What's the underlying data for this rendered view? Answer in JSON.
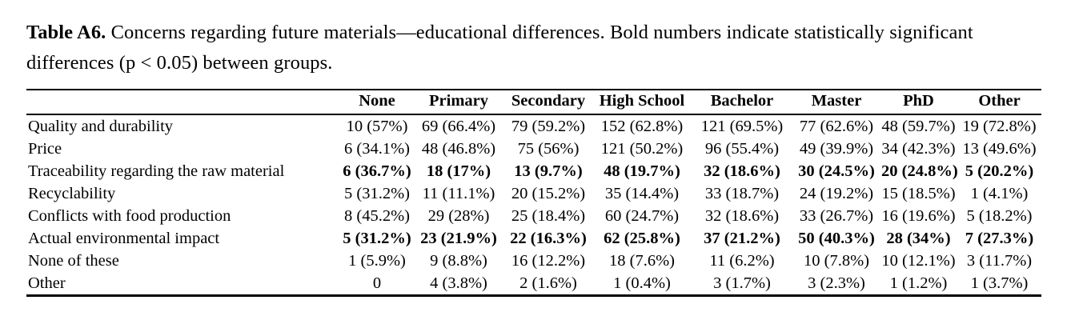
{
  "caption": {
    "label": "Table A6.",
    "text": " Concerns regarding future materials—educational differences. Bold numbers indicate statistically significant differences (p < 0.05) between groups."
  },
  "table": {
    "columns": [
      "None",
      "Primary",
      "Secondary",
      "High School",
      "Bachelor",
      "Master",
      "PhD",
      "Other"
    ],
    "rows": [
      {
        "label": "Quality and durability",
        "bold": false,
        "values": [
          "10 (57%)",
          "69 (66.4%)",
          "79 (59.2%)",
          "152 (62.8%)",
          "121 (69.5%)",
          "77 (62.6%)",
          "48 (59.7%)",
          "19 (72.8%)"
        ]
      },
      {
        "label": "Price",
        "bold": false,
        "values": [
          "6 (34.1%)",
          "48 (46.8%)",
          "75 (56%)",
          "121 (50.2%)",
          "96 (55.4%)",
          "49 (39.9%)",
          "34 (42.3%)",
          "13 (49.6%)"
        ]
      },
      {
        "label": "Traceability regarding the raw material",
        "bold": true,
        "values": [
          "6 (36.7%)",
          "18 (17%)",
          "13 (9.7%)",
          "48 (19.7%)",
          "32 (18.6%)",
          "30 (24.5%)",
          "20 (24.8%)",
          "5 (20.2%)"
        ]
      },
      {
        "label": "Recyclability",
        "bold": false,
        "values": [
          "5 (31.2%)",
          "11 (11.1%)",
          "20 (15.2%)",
          "35 (14.4%)",
          "33 (18.7%)",
          "24 (19.2%)",
          "15 (18.5%)",
          "1 (4.1%)"
        ]
      },
      {
        "label": "Conflicts with food production",
        "bold": false,
        "values": [
          "8 (45.2%)",
          "29 (28%)",
          "25 (18.4%)",
          "60 (24.7%)",
          "32 (18.6%)",
          "33 (26.7%)",
          "16 (19.6%)",
          "5 (18.2%)"
        ]
      },
      {
        "label": "Actual environmental impact",
        "bold": true,
        "values": [
          "5 (31.2%)",
          "23 (21.9%)",
          "22 (16.3%)",
          "62 (25.8%)",
          "37 (21.2%)",
          "50 (40.3%)",
          "28 (34%)",
          "7 (27.3%)"
        ]
      },
      {
        "label": "None of these",
        "bold": false,
        "values": [
          "1 (5.9%)",
          "9 (8.8%)",
          "16 (12.2%)",
          "18 (7.6%)",
          "11 (6.2%)",
          "10 (7.8%)",
          "10 (12.1%)",
          "3 (11.7%)"
        ]
      },
      {
        "label": "Other",
        "bold": false,
        "values": [
          "0",
          "4 (3.8%)",
          "2 (1.6%)",
          "1 (0.4%)",
          "3 (1.7%)",
          "3 (2.3%)",
          "1 (1.2%)",
          "1 (3.7%)"
        ]
      }
    ]
  }
}
